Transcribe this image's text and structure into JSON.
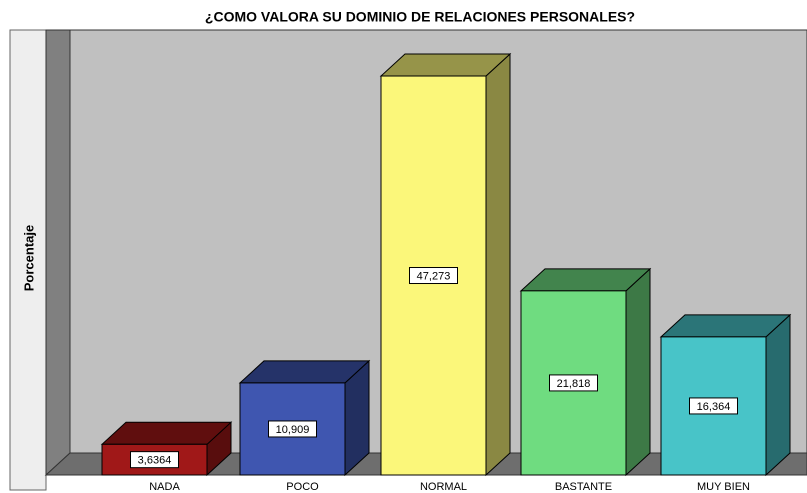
{
  "chart_data": {
    "type": "bar3d",
    "title": "¿COMO VALORA SU DOMINIO DE RELACIONES PERSONALES?",
    "y_label": "Porcentaje",
    "categories": [
      "NADA",
      "POCO",
      "NORMAL",
      "BASTANTE",
      "MUY BIEN"
    ],
    "values": [
      3.6364,
      10.909,
      47.273,
      21.818,
      16.364
    ],
    "value_labels": [
      "3,6364",
      "10,909",
      "47,273",
      "21,818",
      "16,364"
    ],
    "colors": [
      "#a01818",
      "#3f56b0",
      "#fbf77a",
      "#6fdc80",
      "#48c4c8"
    ],
    "ylim": [
      0,
      50
    ]
  }
}
